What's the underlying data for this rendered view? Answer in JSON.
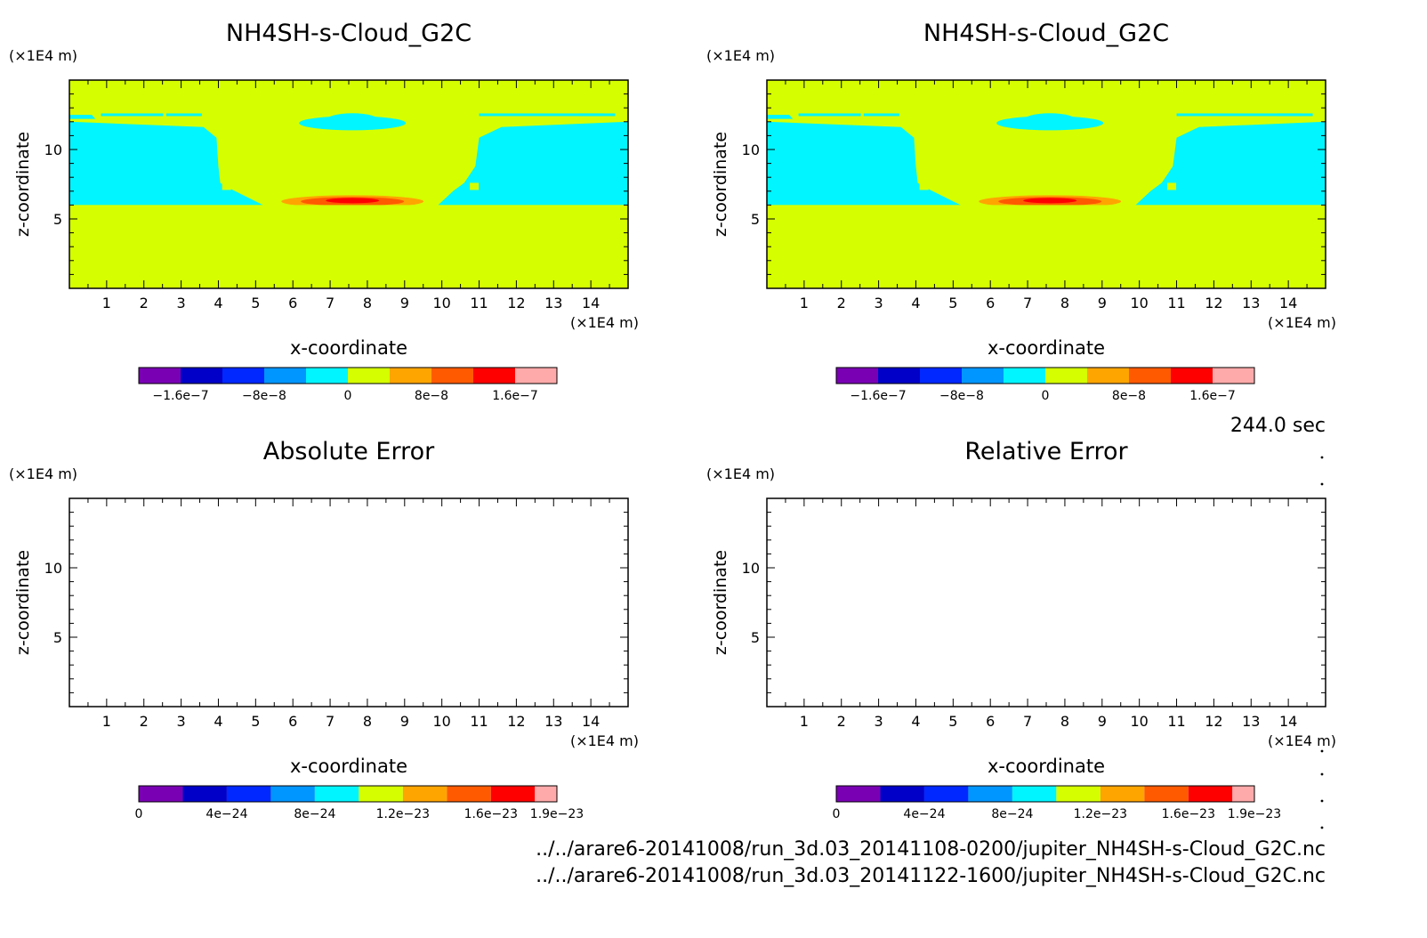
{
  "time_label": "244.0 sec",
  "files": [
    "../../arare6-20141008/run_3d.03_20141108-0200/jupiter_NH4SH-s-Cloud_G2C.nc",
    "../../arare6-20141008/run_3d.03_20141122-1600/jupiter_NH4SH-s-Cloud_G2C.nc"
  ],
  "colors": {
    "field_palette": [
      "#7a00b4",
      "#0000c8",
      "#0028ff",
      "#0096ff",
      "#00f5ff",
      "#d5ff00",
      "#ffa500",
      "#ff5a00",
      "#ff0000",
      "#ffaaaa"
    ],
    "background_field": "#d5ff00",
    "cloud_region": "#00f5ff",
    "frame": "#000000"
  },
  "chart_data": [
    {
      "type": "heatmap",
      "title": "NH4SH-s-Cloud_G2C",
      "xlabel": "x-coordinate",
      "ylabel": "z-coordinate",
      "x_unit": "(×1E4 m)",
      "y_unit": "(×1E4 m)",
      "xlim": [
        0,
        15
      ],
      "ylim": [
        0,
        15
      ],
      "x_ticks": [
        1,
        2,
        3,
        4,
        5,
        6,
        7,
        8,
        9,
        10,
        11,
        12,
        13,
        14
      ],
      "y_ticks": [
        5,
        10
      ],
      "colorbar": {
        "tick_labels": [
          "−1.6e−7",
          "−8e−8",
          "0",
          "8e−8",
          "1.6e−7"
        ],
        "tick_values": [
          -1.6e-07,
          -8e-08,
          0,
          8e-08,
          1.6e-07
        ],
        "levels": [
          -2e-07,
          -1.6e-07,
          -1.2e-07,
          -8e-08,
          -4e-08,
          0,
          4e-08,
          8e-08,
          1.2e-07,
          1.6e-07,
          2e-07
        ]
      },
      "field_summary": {
        "background_value_range": [
          0,
          4e-08
        ],
        "cloud_layer_z": [
          6,
          12
        ],
        "max_value_center": {
          "x": 7.6,
          "z": 6.4,
          "value": 1.6e-07
        }
      }
    },
    {
      "type": "heatmap",
      "title": "NH4SH-s-Cloud_G2C",
      "xlabel": "x-coordinate",
      "ylabel": "z-coordinate",
      "x_unit": "(×1E4 m)",
      "y_unit": "(×1E4 m)",
      "xlim": [
        0,
        15
      ],
      "ylim": [
        0,
        15
      ],
      "x_ticks": [
        1,
        2,
        3,
        4,
        5,
        6,
        7,
        8,
        9,
        10,
        11,
        12,
        13,
        14
      ],
      "y_ticks": [
        5,
        10
      ],
      "colorbar": {
        "tick_labels": [
          "−1.6e−7",
          "−8e−8",
          "0",
          "8e−8",
          "1.6e−7"
        ],
        "tick_values": [
          -1.6e-07,
          -8e-08,
          0,
          8e-08,
          1.6e-07
        ],
        "levels": [
          -2e-07,
          -1.6e-07,
          -1.2e-07,
          -8e-08,
          -4e-08,
          0,
          4e-08,
          8e-08,
          1.2e-07,
          1.6e-07,
          2e-07
        ]
      },
      "field_summary": {
        "background_value_range": [
          0,
          4e-08
        ],
        "cloud_layer_z": [
          6,
          12
        ],
        "max_value_center": {
          "x": 7.6,
          "z": 6.4,
          "value": 1.6e-07
        }
      }
    },
    {
      "type": "heatmap",
      "title": "Absolute Error",
      "xlabel": "x-coordinate",
      "ylabel": "z-coordinate",
      "x_unit": "(×1E4 m)",
      "y_unit": "(×1E4 m)",
      "xlim": [
        0,
        15
      ],
      "ylim": [
        0,
        15
      ],
      "x_ticks": [
        1,
        2,
        3,
        4,
        5,
        6,
        7,
        8,
        9,
        10,
        11,
        12,
        13,
        14
      ],
      "y_ticks": [
        5,
        10
      ],
      "colorbar": {
        "tick_labels": [
          "0",
          "4e−24",
          "8e−24",
          "1.2e−23",
          "1.6e−23",
          "1.9e−23"
        ],
        "tick_values": [
          0,
          4e-24,
          8e-24,
          1.2e-23,
          1.6e-23,
          1.9e-23
        ],
        "levels": [
          0,
          2e-24,
          4e-24,
          6e-24,
          8e-24,
          1e-23,
          1.2e-23,
          1.4e-23,
          1.6e-23,
          1.8e-23,
          1.9e-23
        ]
      },
      "field_summary": {
        "empty": true
      }
    },
    {
      "type": "heatmap",
      "title": "Relative Error",
      "xlabel": "x-coordinate",
      "ylabel": "z-coordinate",
      "x_unit": "(×1E4 m)",
      "y_unit": "(×1E4 m)",
      "xlim": [
        0,
        15
      ],
      "ylim": [
        0,
        15
      ],
      "x_ticks": [
        1,
        2,
        3,
        4,
        5,
        6,
        7,
        8,
        9,
        10,
        11,
        12,
        13,
        14
      ],
      "y_ticks": [
        5,
        10
      ],
      "colorbar": {
        "tick_labels": [
          "0",
          "4e−24",
          "8e−24",
          "1.2e−23",
          "1.6e−23",
          "1.9e−23"
        ],
        "tick_values": [
          0,
          4e-24,
          8e-24,
          1.2e-23,
          1.6e-23,
          1.9e-23
        ],
        "levels": [
          0,
          2e-24,
          4e-24,
          6e-24,
          8e-24,
          1e-23,
          1.2e-23,
          1.4e-23,
          1.6e-23,
          1.8e-23,
          1.9e-23
        ]
      },
      "field_summary": {
        "empty": true
      }
    }
  ]
}
